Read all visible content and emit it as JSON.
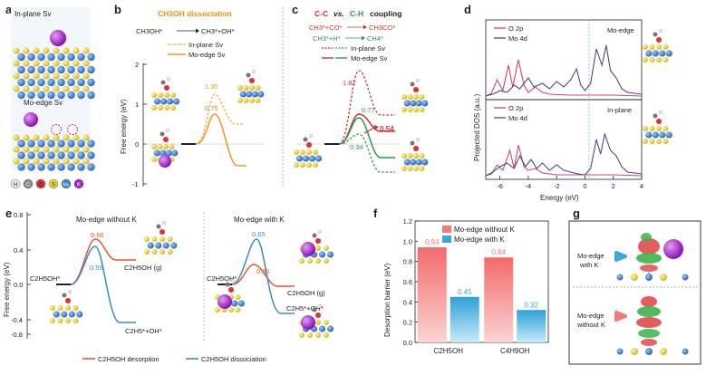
{
  "panels": {
    "a": {
      "letter": "a",
      "label_top": "In-plane Sv",
      "label_bottom": "Mo-edge Sv",
      "legend": [
        {
          "sym": "H",
          "color": "#e8e8e8"
        },
        {
          "sym": "C",
          "color": "#8a8a8a"
        },
        {
          "sym": "O",
          "color": "#e03030"
        },
        {
          "sym": "S",
          "color": "#e8d43a"
        },
        {
          "sym": "Mo",
          "color": "#3a7fd0"
        },
        {
          "sym": "K",
          "color": "#a020c8"
        }
      ]
    },
    "b": {
      "letter": "b",
      "title": "CH3OH dissociation",
      "reaction_left": "CH3OH*",
      "reaction_right": "CH3*+OH*",
      "legend": [
        "In-plane Sv",
        "Mo-edge Sv"
      ],
      "ylabel": "Free energy (eV)",
      "yticks": [
        "2",
        "1",
        "0",
        "-1"
      ],
      "barrier_inplane": "1.30",
      "barrier_moedge": "0.75"
    },
    "c": {
      "letter": "c",
      "title_cc": "C-C",
      "title_vs": "vs.",
      "title_ch": "C-H",
      "title_rest": "coupling",
      "rxn1_left": "CH3*+CO*",
      "rxn1_right": "CH3CO*",
      "rxn2_left": "CH3*+H*",
      "rxn2_right": "CH4*",
      "legend": [
        "In-plane Sv",
        "Mo-edge Sv"
      ],
      "v1": "1.82",
      "v2": "0.77",
      "v3": "0.54",
      "v4": "0.34"
    },
    "d": {
      "letter": "d",
      "ylabel": "Projected DOS (a.u.)",
      "xlabel": "Energy (eV)",
      "xticks": [
        "-6",
        "-4",
        "-2",
        "0",
        "2",
        "4"
      ],
      "top_label": "Mo-edge",
      "bottom_label": "In-plane",
      "legend": [
        "O 2p",
        "Mo 4d"
      ]
    },
    "e": {
      "letter": "e",
      "left_title": "Mo-edge without K",
      "right_title": "Mo-edge with K",
      "ylabel": "Free energy (eV)",
      "yticks": [
        "0.8",
        "0.4",
        "0.0",
        "-0.4",
        "-0.8"
      ],
      "left_v1": "0.66",
      "left_v2": "0.59",
      "right_v1": "0.65",
      "right_v2": "0.36",
      "lbl_start": "C2H5OH*",
      "lbl_gas": "C2H5OH (g)",
      "lbl_diss": "C2H5*+OH*",
      "legend": [
        "C2H5OH desorption",
        "C2H5OH dissociation"
      ]
    },
    "f": {
      "letter": "f",
      "ylabel": "Desorption barrier (eV)"
    },
    "g": {
      "letter": "g",
      "label_top_1": "Mo-edge",
      "label_top_2": "with K",
      "label_bot_1": "Mo-edge",
      "label_bot_2": "without K"
    }
  },
  "chart_data": [
    {
      "type": "bar",
      "title": "",
      "ylabel": "Desorption barrier (eV)",
      "ylim": [
        0,
        1.2
      ],
      "yticks": [
        0,
        0.2,
        0.4,
        0.6,
        0.8,
        1.0,
        1.2
      ],
      "categories": [
        "C2H5OH",
        "C4H9OH"
      ],
      "series": [
        {
          "name": "Mo-edge without K",
          "color": "#f27a7a",
          "values": [
            0.94,
            0.84
          ]
        },
        {
          "name": "Mo-edge with K",
          "color": "#3aa8dc",
          "values": [
            0.45,
            0.32
          ]
        }
      ],
      "value_labels": [
        [
          "0.94",
          "0.84"
        ],
        [
          "0.45",
          "0.32"
        ]
      ]
    }
  ]
}
